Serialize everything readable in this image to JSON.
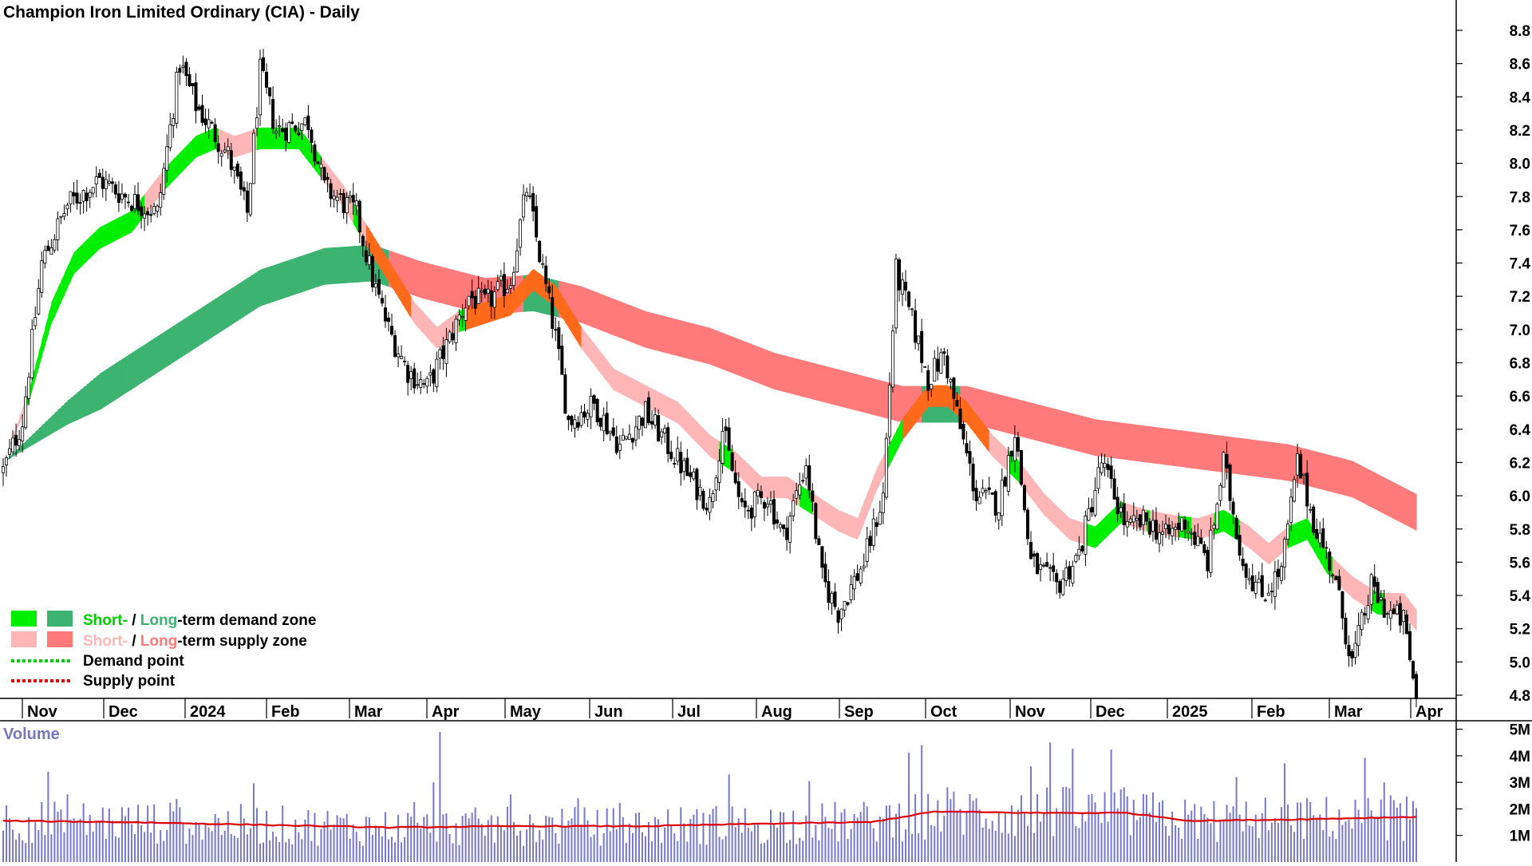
{
  "colors": {
    "short_demand": "#00ee00",
    "long_demand": "#3cb371",
    "short_supply": "#ffb6b6",
    "long_supply": "#ff7a7a",
    "overlap": "#ff6a1a",
    "demand_point": "#00cc00",
    "supply_point": "#dd0000",
    "volume_bar": "#7777cc",
    "volume_ma": "#dd0000",
    "candle": "#000000"
  },
  "chart_data": {
    "type": "candlestick",
    "title": "Champion Iron Limited Ordinary (CIA) - Daily",
    "ylim": [
      4.6,
      9.0
    ],
    "y_ticks": [
      "8.8",
      "8.6",
      "8.4",
      "8.2",
      "8.0",
      "7.8",
      "7.6",
      "7.4",
      "7.2",
      "7.0",
      "6.8",
      "6.6",
      "6.4",
      "6.2",
      "6.0",
      "5.8",
      "5.6",
      "5.4",
      "5.2",
      "5.0",
      "4.8"
    ],
    "x_ticks": [
      "Nov",
      "Dec",
      "2024",
      "Feb",
      "Mar",
      "Apr",
      "May",
      "Jun",
      "Jul",
      "Aug",
      "Sep",
      "Oct",
      "Nov",
      "Dec",
      "2025",
      "Feb",
      "Mar",
      "Apr"
    ],
    "price_path": [
      [
        0,
        6.15
      ],
      [
        6,
        6.45
      ],
      [
        12,
        7.4
      ],
      [
        20,
        7.75
      ],
      [
        30,
        7.9
      ],
      [
        38,
        7.8
      ],
      [
        48,
        7.7
      ],
      [
        55,
        8.6
      ],
      [
        60,
        8.35
      ],
      [
        70,
        8.05
      ],
      [
        76,
        7.7
      ],
      [
        80,
        8.55
      ],
      [
        85,
        8.2
      ],
      [
        95,
        8.25
      ],
      [
        100,
        7.85
      ],
      [
        110,
        7.7
      ],
      [
        115,
        7.3
      ],
      [
        120,
        7.0
      ],
      [
        126,
        6.75
      ],
      [
        132,
        6.65
      ],
      [
        138,
        6.9
      ],
      [
        145,
        7.2
      ],
      [
        150,
        7.15
      ],
      [
        158,
        7.3
      ],
      [
        163,
        7.85
      ],
      [
        168,
        7.35
      ],
      [
        172,
        6.95
      ],
      [
        176,
        6.45
      ],
      [
        184,
        6.55
      ],
      [
        192,
        6.3
      ],
      [
        200,
        6.5
      ],
      [
        207,
        6.3
      ],
      [
        214,
        6.1
      ],
      [
        220,
        5.95
      ],
      [
        224,
        6.4
      ],
      [
        230,
        5.9
      ],
      [
        238,
        6.0
      ],
      [
        243,
        5.75
      ],
      [
        250,
        6.2
      ],
      [
        255,
        5.5
      ],
      [
        260,
        5.3
      ],
      [
        268,
        5.6
      ],
      [
        274,
        6.0
      ],
      [
        278,
        7.35
      ],
      [
        283,
        7.05
      ],
      [
        288,
        6.7
      ],
      [
        293,
        6.85
      ],
      [
        298,
        6.4
      ],
      [
        303,
        6.0
      ],
      [
        310,
        5.95
      ],
      [
        315,
        6.4
      ],
      [
        320,
        5.6
      ],
      [
        328,
        5.45
      ],
      [
        335,
        5.65
      ],
      [
        342,
        6.2
      ],
      [
        350,
        5.8
      ],
      [
        356,
        5.85
      ],
      [
        362,
        5.75
      ],
      [
        368,
        5.85
      ],
      [
        375,
        5.6
      ],
      [
        380,
        6.2
      ],
      [
        386,
        5.6
      ],
      [
        392,
        5.4
      ],
      [
        398,
        5.55
      ],
      [
        403,
        6.2
      ],
      [
        408,
        5.85
      ],
      [
        414,
        5.55
      ],
      [
        420,
        5.0
      ],
      [
        426,
        5.45
      ],
      [
        431,
        5.3
      ],
      [
        436,
        5.25
      ],
      [
        440,
        4.78
      ]
    ],
    "short_term_ma": [
      [
        0,
        6.2
      ],
      [
        8,
        6.6
      ],
      [
        15,
        7.1
      ],
      [
        22,
        7.4
      ],
      [
        30,
        7.55
      ],
      [
        40,
        7.65
      ],
      [
        50,
        7.9
      ],
      [
        60,
        8.1
      ],
      [
        66,
        8.15
      ],
      [
        72,
        8.1
      ],
      [
        80,
        8.15
      ],
      [
        92,
        8.15
      ],
      [
        100,
        7.95
      ],
      [
        106,
        7.8
      ],
      [
        112,
        7.6
      ],
      [
        120,
        7.35
      ],
      [
        128,
        7.1
      ],
      [
        135,
        6.95
      ],
      [
        142,
        7.05
      ],
      [
        150,
        7.1
      ],
      [
        158,
        7.15
      ],
      [
        165,
        7.3
      ],
      [
        172,
        7.2
      ],
      [
        180,
        6.95
      ],
      [
        190,
        6.7
      ],
      [
        200,
        6.6
      ],
      [
        210,
        6.5
      ],
      [
        220,
        6.3
      ],
      [
        228,
        6.2
      ],
      [
        236,
        6.05
      ],
      [
        244,
        6.05
      ],
      [
        252,
        5.95
      ],
      [
        260,
        5.85
      ],
      [
        266,
        5.8
      ],
      [
        272,
        6.1
      ],
      [
        280,
        6.4
      ],
      [
        288,
        6.6
      ],
      [
        294,
        6.6
      ],
      [
        300,
        6.5
      ],
      [
        308,
        6.3
      ],
      [
        316,
        6.15
      ],
      [
        324,
        5.95
      ],
      [
        332,
        5.8
      ],
      [
        340,
        5.75
      ],
      [
        348,
        5.9
      ],
      [
        356,
        5.85
      ],
      [
        364,
        5.82
      ],
      [
        372,
        5.8
      ],
      [
        380,
        5.85
      ],
      [
        388,
        5.75
      ],
      [
        394,
        5.65
      ],
      [
        400,
        5.75
      ],
      [
        406,
        5.8
      ],
      [
        412,
        5.6
      ],
      [
        420,
        5.45
      ],
      [
        428,
        5.35
      ],
      [
        436,
        5.35
      ],
      [
        440,
        5.25
      ]
    ],
    "short_term_ma_width": 0.13,
    "long_term_ma": [
      [
        0,
        6.2
      ],
      [
        20,
        6.5
      ],
      [
        40,
        6.75
      ],
      [
        60,
        7.0
      ],
      [
        80,
        7.25
      ],
      [
        100,
        7.38
      ],
      [
        115,
        7.4
      ],
      [
        130,
        7.3
      ],
      [
        150,
        7.2
      ],
      [
        165,
        7.22
      ],
      [
        180,
        7.15
      ],
      [
        200,
        7.0
      ],
      [
        220,
        6.9
      ],
      [
        240,
        6.75
      ],
      [
        260,
        6.65
      ],
      [
        280,
        6.55
      ],
      [
        300,
        6.55
      ],
      [
        320,
        6.45
      ],
      [
        340,
        6.35
      ],
      [
        360,
        6.3
      ],
      [
        380,
        6.25
      ],
      [
        400,
        6.2
      ],
      [
        420,
        6.1
      ],
      [
        440,
        5.9
      ]
    ],
    "long_term_ma_width": 0.22,
    "volume_ylim": [
      0,
      5.2
    ],
    "volume_ticks": [
      "5M",
      "4M",
      "3M",
      "2M",
      "1M"
    ],
    "volume_ma_path": [
      [
        0,
        1.55
      ],
      [
        40,
        1.5
      ],
      [
        80,
        1.4
      ],
      [
        120,
        1.3
      ],
      [
        160,
        1.35
      ],
      [
        200,
        1.35
      ],
      [
        240,
        1.45
      ],
      [
        270,
        1.5
      ],
      [
        290,
        1.9
      ],
      [
        320,
        1.85
      ],
      [
        350,
        1.85
      ],
      [
        370,
        1.55
      ],
      [
        400,
        1.6
      ],
      [
        440,
        1.7
      ]
    ],
    "volume_spikes": [
      [
        14,
        3.4
      ],
      [
        136,
        4.9
      ],
      [
        282,
        4.7
      ],
      [
        286,
        4.4
      ],
      [
        326,
        4.5
      ],
      [
        320,
        3.6
      ],
      [
        251,
        3.1
      ],
      [
        134,
        3.0
      ],
      [
        226,
        3.3
      ],
      [
        384,
        3.2
      ],
      [
        430,
        3.0
      ]
    ]
  },
  "legend": {
    "row1_short": "Short-",
    "row1_sep": " / ",
    "row1_long": "Long",
    "row1_rest": "-term demand zone",
    "row2_short": "Short-",
    "row2_sep": " / ",
    "row2_long": "Long",
    "row2_rest": "-term supply zone",
    "row3": "Demand point",
    "row4": "Supply point"
  },
  "volume_panel": {
    "title": "Volume"
  }
}
